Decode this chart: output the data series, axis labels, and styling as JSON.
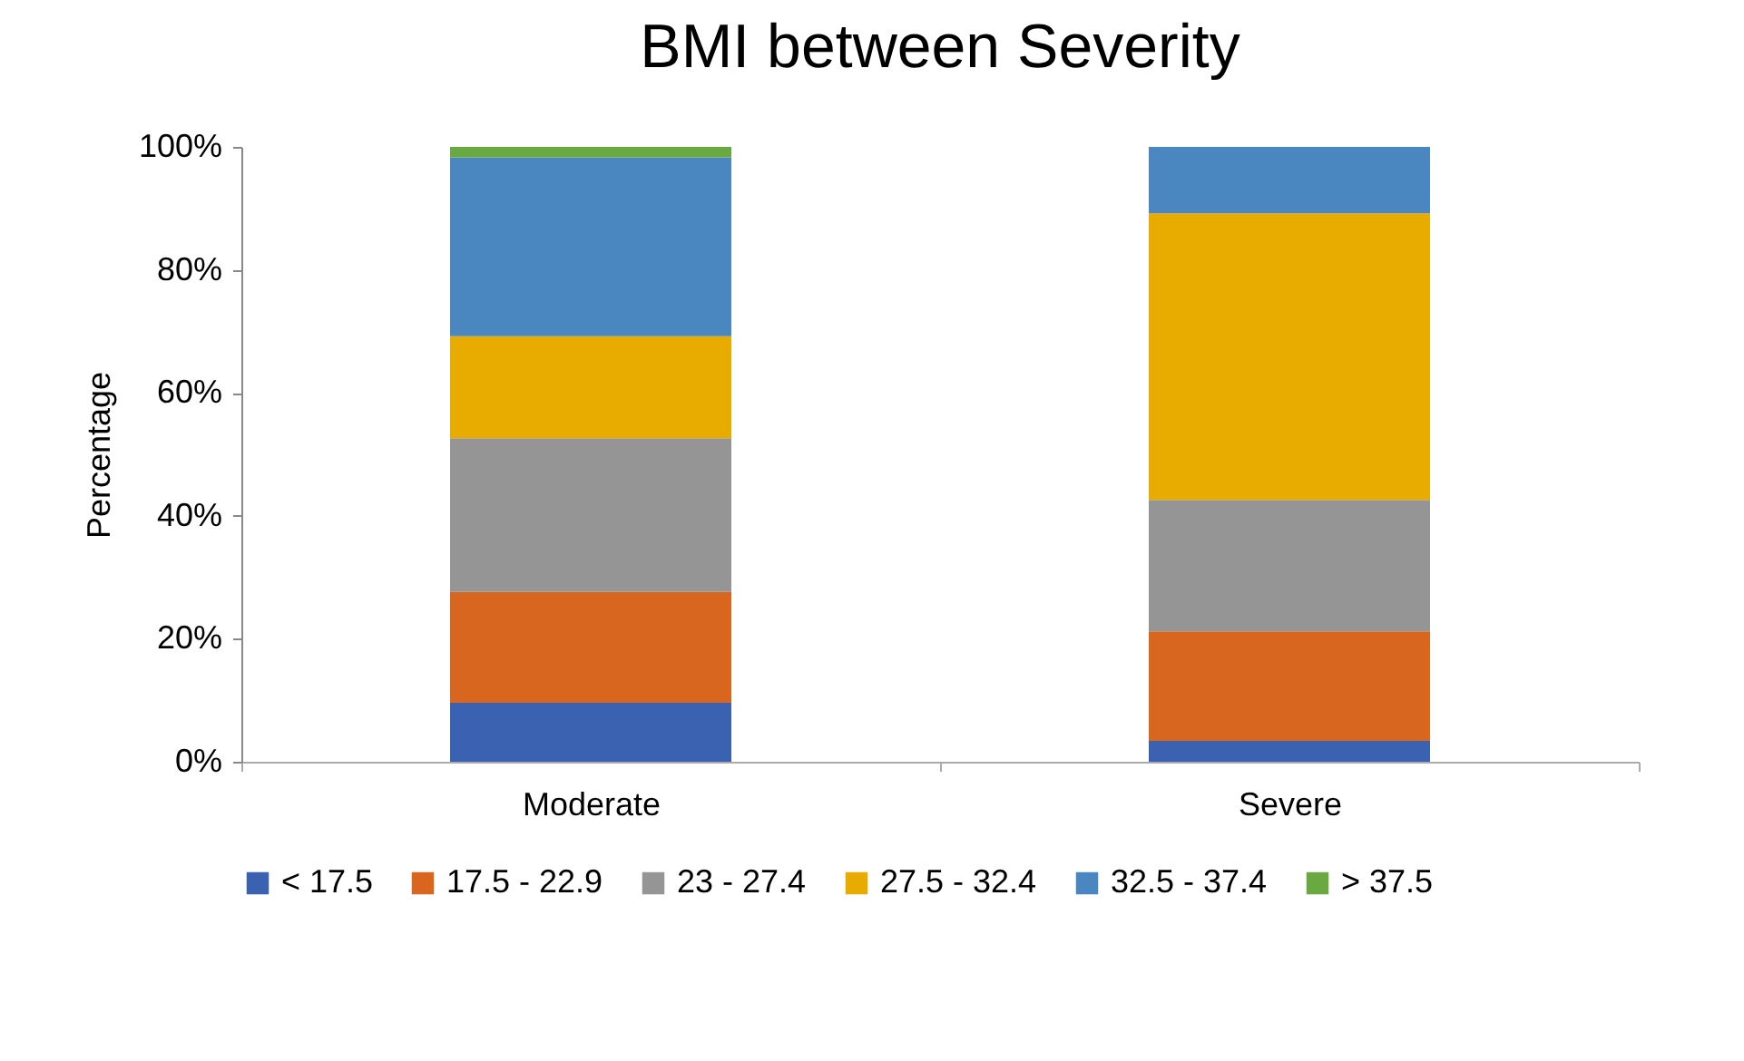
{
  "chart_data": {
    "type": "bar",
    "title": "BMI between Severity",
    "ylabel": "Percentage",
    "stacked": true,
    "categories": [
      "Moderate",
      "Severe"
    ],
    "series": [
      {
        "name": "< 17.5",
        "color": "#3a62b0",
        "values": [
          9.6,
          3.4
        ]
      },
      {
        "name": "17.5 - 22.9",
        "color": "#d9661f",
        "values": [
          18.0,
          17.8
        ]
      },
      {
        "name": "23 - 27.4",
        "color": "#959595",
        "values": [
          25.0,
          21.4
        ]
      },
      {
        "name": "27.5 - 32.4",
        "color": "#e8ac00",
        "values": [
          16.6,
          46.6
        ]
      },
      {
        "name": "32.5 - 37.4",
        "color": "#4a87c1",
        "values": [
          29.1,
          10.8
        ]
      },
      {
        "name": "> 37.5",
        "color": "#6aa841",
        "values": [
          1.7,
          0
        ]
      }
    ],
    "ylim": [
      0,
      100
    ],
    "yticks": [
      {
        "value": 0,
        "label": "0%"
      },
      {
        "value": 20,
        "label": "20%"
      },
      {
        "value": 40,
        "label": "40%"
      },
      {
        "value": 60,
        "label": "60%"
      },
      {
        "value": 80,
        "label": "80%"
      },
      {
        "value": 100,
        "label": "100%"
      }
    ],
    "grid": false,
    "legend": "bottom"
  }
}
